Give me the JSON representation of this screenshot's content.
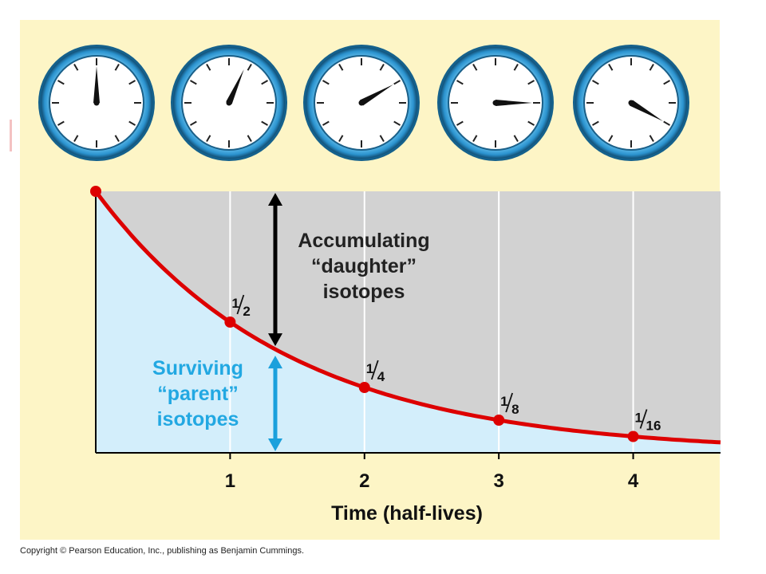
{
  "colors": {
    "panel_bg": "#fdf5c6",
    "above_curve_fill": "#d2d2d2",
    "below_curve_fill": "#d3eefb",
    "curve": "#dd0000",
    "clock_ring": "#3aa3dc",
    "clock_ring_dark": "#16638f",
    "daughter_arrow": "#000000",
    "parent_arrow": "#1aa0dc",
    "parent_text": "#22a8e2",
    "gridline": "#ffffff"
  },
  "clocks": [
    {
      "icon": "clock-icon",
      "hand_minutes": 0
    },
    {
      "icon": "clock-icon",
      "hand_minutes": 4
    },
    {
      "icon": "clock-icon",
      "hand_minutes": 10
    },
    {
      "icon": "clock-icon",
      "hand_minutes": 15
    },
    {
      "icon": "clock-icon",
      "hand_minutes": 20
    }
  ],
  "chart_data": {
    "type": "line",
    "title": "",
    "xlabel": "Time (half-lives)",
    "ylabel": "",
    "xlim": [
      0,
      4.65
    ],
    "ylim": [
      0,
      1
    ],
    "x_ticks": [
      "1",
      "2",
      "3",
      "4"
    ],
    "grid": "vertical",
    "series": [
      {
        "x": [
          0,
          1,
          2,
          3,
          4
        ],
        "y": [
          1,
          0.5,
          0.25,
          0.125,
          0.0625
        ],
        "point_labels": [
          {
            "whole": "",
            "num": "",
            "den": ""
          },
          {
            "whole": "1/2",
            "num": "1",
            "den": "2"
          },
          {
            "whole": "1/4",
            "num": "1",
            "den": "4"
          },
          {
            "whole": "1/8",
            "num": "1",
            "den": "8"
          },
          {
            "whole": "1/16",
            "num": "1",
            "den": "16"
          }
        ]
      }
    ],
    "annotations": {
      "daughter": [
        "Accumulating",
        "“daughter”",
        "isotopes"
      ],
      "parent": [
        "Surviving",
        "“parent”",
        "isotopes"
      ]
    }
  },
  "copyright": "Copyright © Pearson Education, Inc., publishing as Benjamin Cummings."
}
